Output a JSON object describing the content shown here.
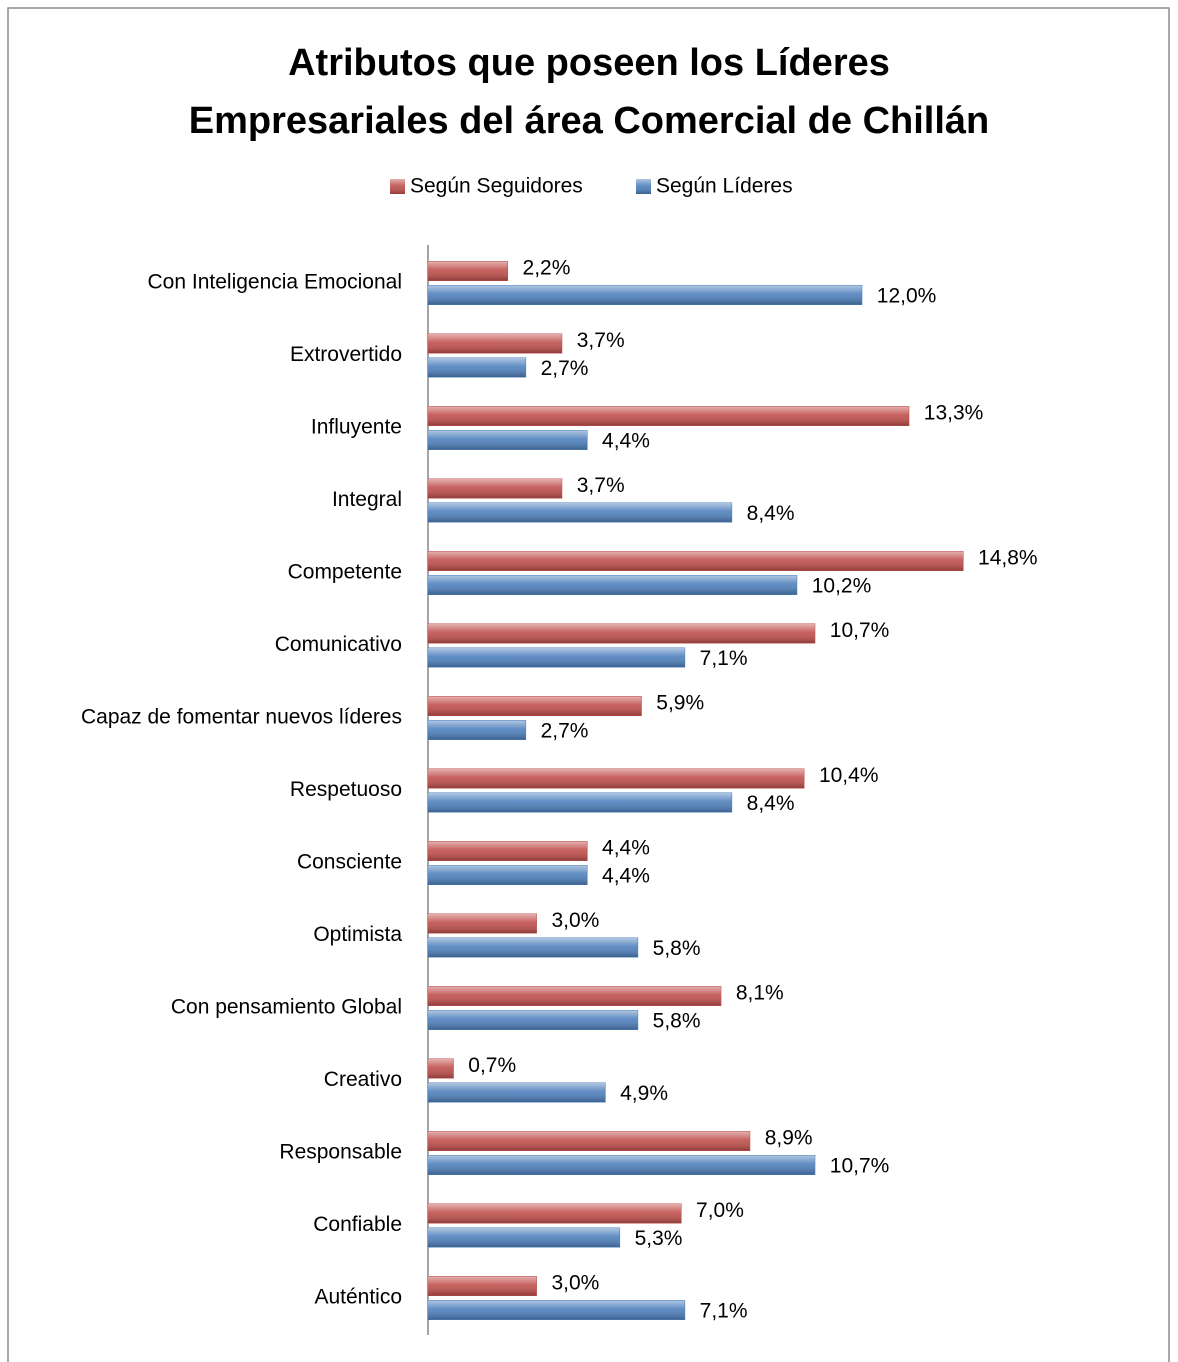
{
  "chart_data": {
    "type": "bar",
    "orientation": "horizontal",
    "title": "Atributos que poseen los Líderes\nEmpresariales del área Comercial de Chillán",
    "categories": [
      "Con Inteligencia Emocional",
      "Extrovertido",
      "Influyente",
      "Integral",
      "Competente",
      "Comunicativo",
      "Capaz de fomentar nuevos líderes",
      "Respetuoso",
      "Consciente",
      "Optimista",
      "Con pensamiento Global",
      "Creativo",
      "Responsable",
      "Confiable",
      "Auténtico"
    ],
    "series": [
      {
        "name": "Según Seguidores",
        "color": "#c0504d",
        "values": [
          2.2,
          3.7,
          13.3,
          3.7,
          14.8,
          10.7,
          5.9,
          10.4,
          4.4,
          3.0,
          8.1,
          0.7,
          8.9,
          7.0,
          3.0
        ],
        "value_labels": [
          "2,2%",
          "3,7%",
          "13,3%",
          "3,7%",
          "14,8%",
          "10,7%",
          "5,9%",
          "10,4%",
          "4,4%",
          "3,0%",
          "8,1%",
          "0,7%",
          "8,9%",
          "7,0%",
          "3,0%"
        ]
      },
      {
        "name": "Según Líderes",
        "color": "#4f81bd",
        "values": [
          12.0,
          2.7,
          4.4,
          8.4,
          10.2,
          7.1,
          2.7,
          8.4,
          4.4,
          5.8,
          5.8,
          4.9,
          10.7,
          5.3,
          7.1
        ],
        "value_labels": [
          "12,0%",
          "2,7%",
          "4,4%",
          "8,4%",
          "10,2%",
          "7,1%",
          "2,7%",
          "8,4%",
          "4,4%",
          "5,8%",
          "5,8%",
          "4,9%",
          "10,7%",
          "5,3%",
          "7,1%"
        ]
      }
    ],
    "legend": "top"
  }
}
